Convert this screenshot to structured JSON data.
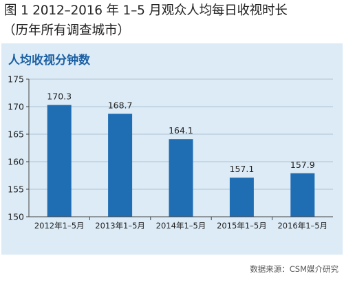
{
  "figure": {
    "title": "图 1  2012–2016 年 1–5 月观众人均每日收视时长",
    "subtitle": "（历年所有调查城市）"
  },
  "source": "数据来源：CSM媒介研究",
  "chart_data": {
    "type": "bar",
    "title": "人均收视分钟数",
    "categories": [
      "2012年1–5月",
      "2013年1–5月",
      "2014年1–5月",
      "2015年1–5月",
      "2016年1–5月"
    ],
    "values": [
      170.3,
      168.7,
      164.1,
      157.1,
      157.9
    ],
    "value_labels": [
      "170.3",
      "168.7",
      "164.1",
      "157.1",
      "157.9"
    ],
    "xlabel": "",
    "ylabel": "",
    "ylim": [
      150,
      175
    ],
    "yticks": [
      150,
      155,
      160,
      165,
      170,
      175
    ],
    "grid": true,
    "legend": "none",
    "colors": {
      "bar": "#1f6db3",
      "panel": "#dcebf6",
      "grid": "#9fb3c4",
      "title": "#1a5fa3"
    }
  }
}
